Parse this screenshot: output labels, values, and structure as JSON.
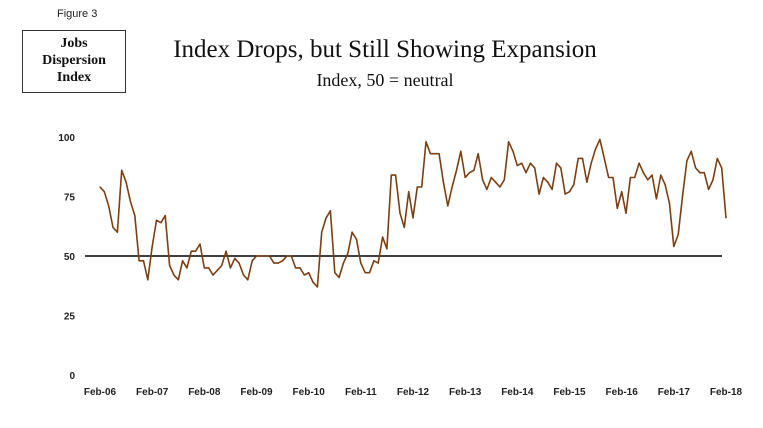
{
  "figure_label": "Figure 3",
  "box_label": [
    "Jobs",
    "Dispersion",
    "Index"
  ],
  "chart_data": {
    "type": "line",
    "title": "Index Drops, but Still Showing Expansion",
    "subtitle": "Index, 50 = neutral",
    "xlabel": "",
    "ylabel": "",
    "ylim": [
      0,
      100
    ],
    "yticks": [
      0,
      25,
      50,
      75,
      100
    ],
    "xticks": [
      "Feb-06",
      "Feb-07",
      "Feb-08",
      "Feb-09",
      "Feb-10",
      "Feb-11",
      "Feb-12",
      "Feb-13",
      "Feb-14",
      "Feb-15",
      "Feb-16",
      "Feb-17",
      "Feb-18"
    ],
    "x_start": "Feb-06",
    "x_step": "month",
    "reference_line": 50,
    "line_color": "#7B3F14",
    "reference_color": "#000000",
    "series": [
      {
        "name": "",
        "values": [
          79,
          77,
          71,
          62,
          60,
          86,
          81,
          73,
          67,
          48,
          48,
          40,
          54,
          65,
          64,
          67,
          46,
          42,
          40,
          48,
          45,
          52,
          52,
          55,
          45,
          45,
          42,
          44,
          46,
          52,
          45,
          49,
          47,
          42,
          40,
          48,
          50,
          50,
          50,
          50,
          47,
          47,
          48,
          50,
          50,
          45,
          45,
          42,
          43,
          39,
          37,
          60,
          66,
          69,
          43,
          41,
          47,
          51,
          60,
          57,
          47,
          43,
          43,
          48,
          47,
          58,
          53,
          84,
          84,
          68,
          62,
          77,
          66,
          79,
          79,
          98,
          93,
          93,
          93,
          81,
          71,
          79,
          86,
          94,
          83,
          85,
          86,
          93,
          82,
          78,
          83,
          81,
          79,
          82,
          98,
          94,
          88,
          89,
          85,
          89,
          87,
          76,
          83,
          81,
          78,
          89,
          87,
          76,
          77,
          80,
          91,
          91,
          81,
          89,
          95,
          99,
          91,
          83,
          83,
          70,
          77,
          68,
          83,
          83,
          89,
          85,
          82,
          84,
          74,
          84,
          80,
          72,
          54,
          59,
          75,
          90,
          94,
          87,
          85,
          85,
          78,
          82,
          91,
          87,
          66
        ]
      }
    ]
  }
}
